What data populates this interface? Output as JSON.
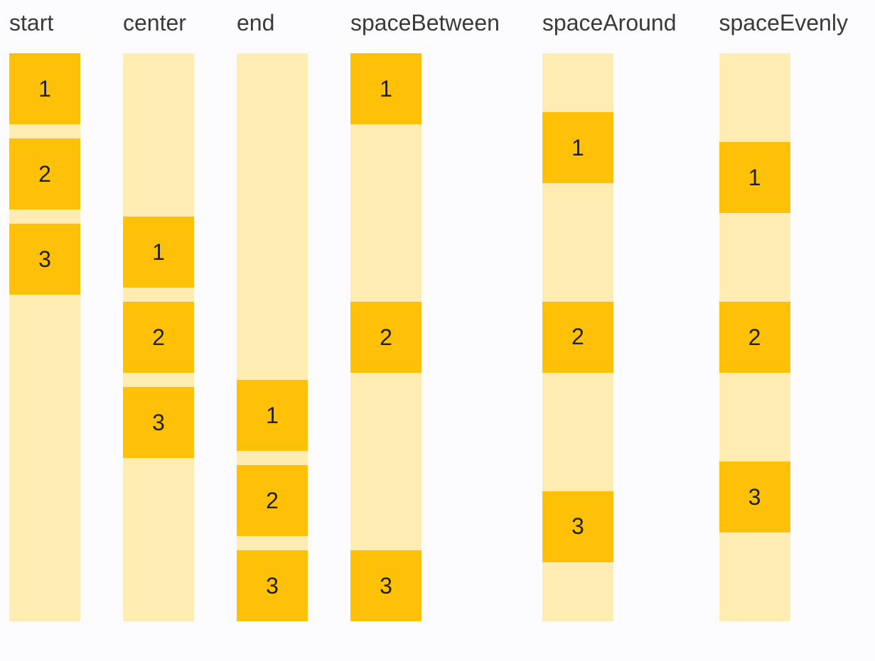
{
  "colors": {
    "background": "#fcfcff",
    "item": "#ffc107",
    "track": "#ffecb3",
    "label_text": "#3a3a3a",
    "item_text": "#212121"
  },
  "demo": {
    "direction": "column",
    "item_labels": [
      "1",
      "2",
      "3"
    ]
  },
  "columns": [
    {
      "label": "start",
      "justify": "flex-start",
      "items": [
        "1",
        "2",
        "3"
      ]
    },
    {
      "label": "center",
      "justify": "center",
      "items": [
        "1",
        "2",
        "3"
      ]
    },
    {
      "label": "end",
      "justify": "flex-end",
      "items": [
        "1",
        "2",
        "3"
      ]
    },
    {
      "label": "spaceBetween",
      "justify": "space-between",
      "items": [
        "1",
        "2",
        "3"
      ]
    },
    {
      "label": "spaceAround",
      "justify": "space-around",
      "items": [
        "1",
        "2",
        "3"
      ]
    },
    {
      "label": "spaceEvenly",
      "justify": "space-evenly",
      "items": [
        "1",
        "2",
        "3"
      ]
    }
  ]
}
